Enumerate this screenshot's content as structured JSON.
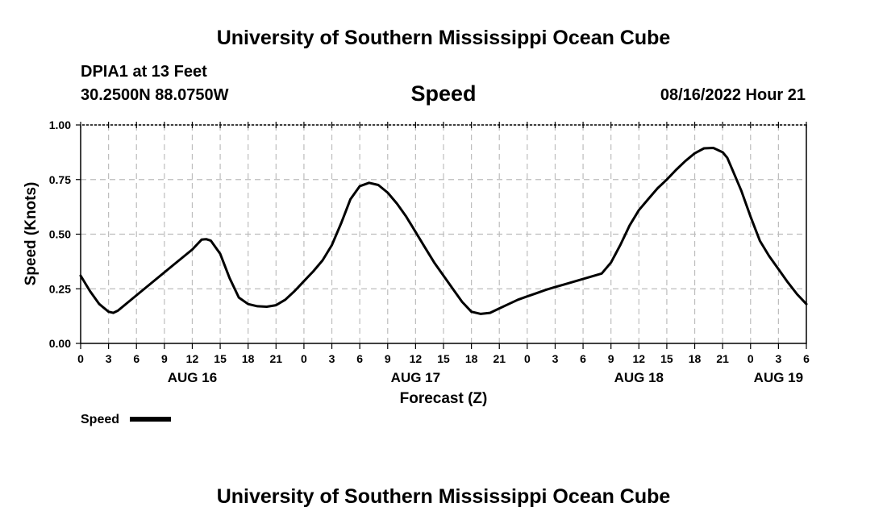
{
  "header": {
    "title": "University of Southern Mississippi Ocean Cube",
    "station": "DPIA1 at 13 Feet",
    "location": "30.2500N  88.0750W",
    "timestamp": "08/16/2022 Hour 21",
    "footer_title": "University of Southern Mississippi Ocean Cube"
  },
  "chart_data": {
    "type": "line",
    "title": "Speed",
    "xlabel": "Forecast (Z)",
    "ylabel": "Speed (Knots)",
    "xlim": [
      0,
      78
    ],
    "ylim": [
      0,
      1
    ],
    "grid": true,
    "x_tick_step_hours": 3,
    "x_tick_labels": [
      "0",
      "3",
      "6",
      "9",
      "12",
      "15",
      "18",
      "21",
      "0",
      "3",
      "6",
      "9",
      "12",
      "15",
      "18",
      "21",
      "0",
      "3",
      "6",
      "9",
      "12",
      "15",
      "18",
      "21",
      "0",
      "3",
      "6"
    ],
    "y_tick_values": [
      0,
      0.25,
      0.5,
      0.75,
      1.0
    ],
    "y_tick_labels": [
      "0.00",
      "0.25",
      "0.50",
      "0.75",
      "1.00"
    ],
    "day_labels": [
      {
        "label": "AUG 16",
        "hour": 12
      },
      {
        "label": "AUG 17",
        "hour": 36
      },
      {
        "label": "AUG 18",
        "hour": 60
      },
      {
        "label": "AUG 19",
        "hour": 75
      }
    ],
    "series": [
      {
        "name": "Speed",
        "color": "#000000",
        "x": [
          0,
          1,
          2,
          3,
          3.5,
          4,
          5,
          6,
          8,
          10,
          12,
          13,
          13.5,
          14,
          15,
          16,
          17,
          18,
          19,
          20,
          21,
          22,
          23,
          24,
          25,
          26,
          27,
          28,
          29,
          30,
          31,
          32,
          33,
          34,
          35,
          36,
          37,
          38,
          39,
          40,
          41,
          42,
          43,
          44,
          45,
          46,
          47,
          48,
          49,
          50,
          51,
          52,
          54,
          56,
          57,
          58,
          59,
          60,
          61,
          62,
          63,
          64,
          65,
          66,
          67,
          68,
          69,
          69.5,
          70,
          71,
          72,
          73,
          74,
          75,
          76,
          77,
          78
        ],
        "values": [
          0.31,
          0.24,
          0.18,
          0.145,
          0.14,
          0.15,
          0.185,
          0.22,
          0.29,
          0.36,
          0.43,
          0.475,
          0.477,
          0.47,
          0.41,
          0.3,
          0.21,
          0.18,
          0.17,
          0.168,
          0.175,
          0.2,
          0.24,
          0.285,
          0.33,
          0.38,
          0.45,
          0.55,
          0.66,
          0.72,
          0.735,
          0.725,
          0.69,
          0.64,
          0.58,
          0.51,
          0.44,
          0.37,
          0.31,
          0.25,
          0.19,
          0.145,
          0.135,
          0.14,
          0.16,
          0.18,
          0.2,
          0.215,
          0.23,
          0.245,
          0.258,
          0.27,
          0.295,
          0.32,
          0.37,
          0.45,
          0.54,
          0.61,
          0.66,
          0.71,
          0.75,
          0.795,
          0.835,
          0.87,
          0.893,
          0.895,
          0.875,
          0.85,
          0.8,
          0.7,
          0.58,
          0.47,
          0.4,
          0.34,
          0.28,
          0.225,
          0.18
        ]
      }
    ],
    "legend": {
      "label": "Speed",
      "position": "bottom-left"
    }
  }
}
